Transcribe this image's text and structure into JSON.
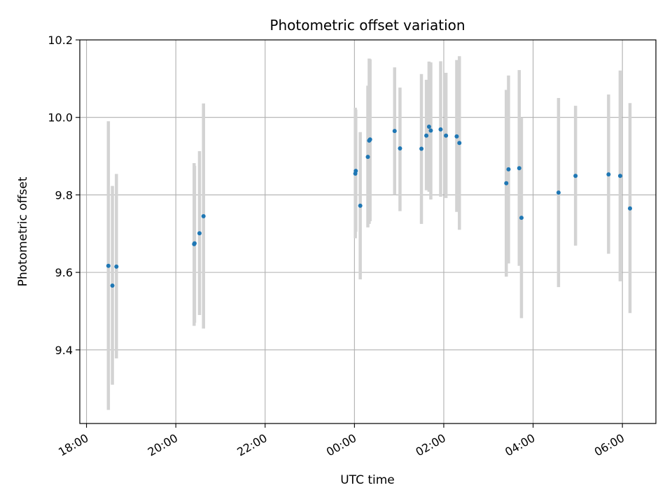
{
  "chart_data": {
    "type": "scatter",
    "title": "Photometric offset variation",
    "xlabel": "UTC time",
    "ylabel": "Photometric offset",
    "x_unit": "hours relative to 00:00 UTC (negative = previous day)",
    "xlim": [
      -6.15,
      6.75
    ],
    "ylim": [
      9.21,
      10.2
    ],
    "xticks": [
      {
        "value": -6,
        "label": "18:00"
      },
      {
        "value": -4,
        "label": "20:00"
      },
      {
        "value": -2,
        "label": "22:00"
      },
      {
        "value": 0,
        "label": "00:00"
      },
      {
        "value": 2,
        "label": "02:00"
      },
      {
        "value": 4,
        "label": "04:00"
      },
      {
        "value": 6,
        "label": "06:00"
      }
    ],
    "yticks": [
      {
        "value": 9.4,
        "label": "9.4"
      },
      {
        "value": 9.6,
        "label": "9.6"
      },
      {
        "value": 9.8,
        "label": "9.8"
      },
      {
        "value": 10.0,
        "label": "10.0"
      },
      {
        "value": 10.2,
        "label": "10.2"
      }
    ],
    "grid": true,
    "marker_color": "#1f77b4",
    "errorbar_color": "#d3d3d3",
    "points": [
      {
        "x": -5.51,
        "y": 9.617,
        "lo": 9.245,
        "hi": 9.99
      },
      {
        "x": -5.42,
        "y": 9.566,
        "lo": 9.31,
        "hi": 9.823
      },
      {
        "x": -5.33,
        "y": 9.615,
        "lo": 9.378,
        "hi": 9.854
      },
      {
        "x": -3.59,
        "y": 9.673,
        "lo": 9.462,
        "hi": 9.882
      },
      {
        "x": -3.58,
        "y": 9.675,
        "lo": 9.47,
        "hi": 9.875
      },
      {
        "x": -3.47,
        "y": 9.701,
        "lo": 9.49,
        "hi": 9.913
      },
      {
        "x": -3.38,
        "y": 9.745,
        "lo": 9.455,
        "hi": 10.036
      },
      {
        "x": 0.02,
        "y": 9.855,
        "lo": 9.688,
        "hi": 10.025
      },
      {
        "x": 0.03,
        "y": 9.862,
        "lo": 9.705,
        "hi": 10.02
      },
      {
        "x": 0.13,
        "y": 9.772,
        "lo": 9.582,
        "hi": 9.962
      },
      {
        "x": 0.3,
        "y": 9.898,
        "lo": 9.716,
        "hi": 10.082
      },
      {
        "x": 0.33,
        "y": 9.94,
        "lo": 9.725,
        "hi": 10.152
      },
      {
        "x": 0.35,
        "y": 9.943,
        "lo": 9.732,
        "hi": 10.15
      },
      {
        "x": 0.9,
        "y": 9.965,
        "lo": 9.8,
        "hi": 10.129
      },
      {
        "x": 1.02,
        "y": 9.92,
        "lo": 9.758,
        "hi": 10.077
      },
      {
        "x": 1.5,
        "y": 9.919,
        "lo": 9.725,
        "hi": 10.112
      },
      {
        "x": 1.61,
        "y": 9.953,
        "lo": 9.812,
        "hi": 10.097
      },
      {
        "x": 1.67,
        "y": 9.976,
        "lo": 9.808,
        "hi": 10.144
      },
      {
        "x": 1.71,
        "y": 9.966,
        "lo": 9.788,
        "hi": 10.142
      },
      {
        "x": 1.93,
        "y": 9.969,
        "lo": 9.795,
        "hi": 10.145
      },
      {
        "x": 2.05,
        "y": 9.953,
        "lo": 9.792,
        "hi": 10.115
      },
      {
        "x": 2.29,
        "y": 9.951,
        "lo": 9.756,
        "hi": 10.148
      },
      {
        "x": 2.35,
        "y": 9.934,
        "lo": 9.71,
        "hi": 10.158
      },
      {
        "x": 3.4,
        "y": 9.83,
        "lo": 9.589,
        "hi": 10.071
      },
      {
        "x": 3.45,
        "y": 9.866,
        "lo": 9.623,
        "hi": 10.108
      },
      {
        "x": 3.69,
        "y": 9.869,
        "lo": 9.617,
        "hi": 10.122
      },
      {
        "x": 3.74,
        "y": 9.741,
        "lo": 9.482,
        "hi": 10.0
      },
      {
        "x": 4.57,
        "y": 9.806,
        "lo": 9.562,
        "hi": 10.05
      },
      {
        "x": 4.95,
        "y": 9.849,
        "lo": 9.669,
        "hi": 10.03
      },
      {
        "x": 5.69,
        "y": 9.853,
        "lo": 9.648,
        "hi": 10.059
      },
      {
        "x": 5.95,
        "y": 9.849,
        "lo": 9.577,
        "hi": 10.121
      },
      {
        "x": 6.17,
        "y": 9.765,
        "lo": 9.495,
        "hi": 10.037
      }
    ]
  }
}
